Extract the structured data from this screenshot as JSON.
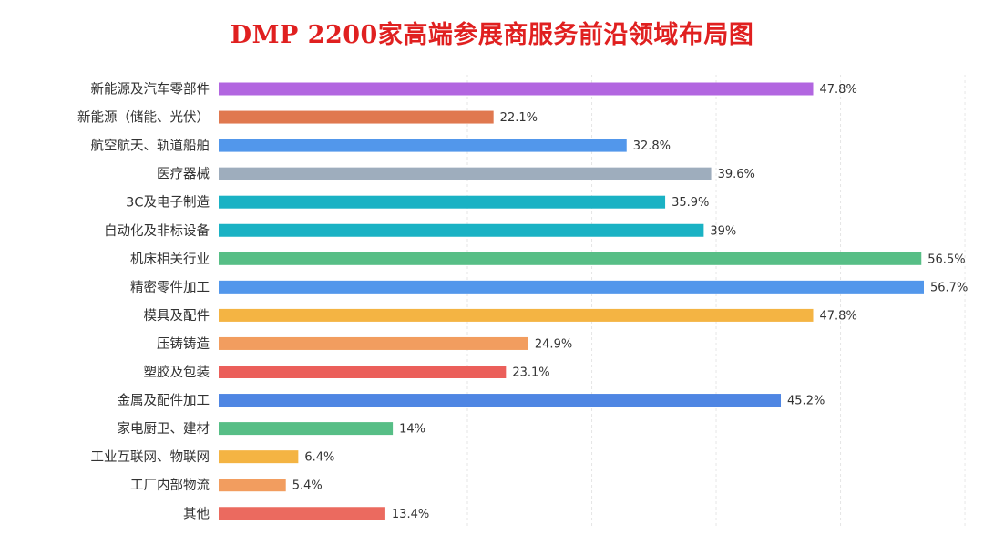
{
  "chart_data": {
    "type": "bar",
    "orientation": "horizontal",
    "title": "DMP 2200家高端参展商服务前沿领域布局图",
    "xlabel": "",
    "ylabel": "",
    "xlim": [
      0,
      60
    ],
    "grid": true,
    "unit": "%",
    "categories": [
      "新能源及汽车零部件",
      "新能源（储能、光伏）",
      "航空航天、轨道船舶",
      "医疗器械",
      "3C及电子制造",
      "自动化及非标设备",
      "机床相关行业",
      "精密零件加工",
      "模具及配件",
      "压铸铸造",
      "塑胶及包装",
      "金属及配件加工",
      "家电厨卫、建材",
      "工业互联网、物联网",
      "工厂内部物流",
      "其他"
    ],
    "values": [
      47.8,
      22.1,
      32.8,
      39.6,
      35.9,
      39,
      56.5,
      56.7,
      47.8,
      24.9,
      23.1,
      45.2,
      14,
      6.4,
      5.4,
      13.4
    ],
    "value_labels": [
      "47.8%",
      "22.1%",
      "32.8%",
      "39.6%",
      "35.9%",
      "39%",
      "56.5%",
      "56.7%",
      "47.8%",
      "24.9%",
      "23.1%",
      "45.2%",
      "14%",
      "6.4%",
      "5.4%",
      "13.4%"
    ],
    "colors": [
      "#b266e0",
      "#e0784f",
      "#5297eb",
      "#9eadbd",
      "#1ab2c4",
      "#1ab2c4",
      "#57be86",
      "#5297eb",
      "#f4b443",
      "#f29d5f",
      "#eb5f5a",
      "#4f86e3",
      "#57be86",
      "#f4b443",
      "#f29d5f",
      "#eb6a5f"
    ]
  }
}
